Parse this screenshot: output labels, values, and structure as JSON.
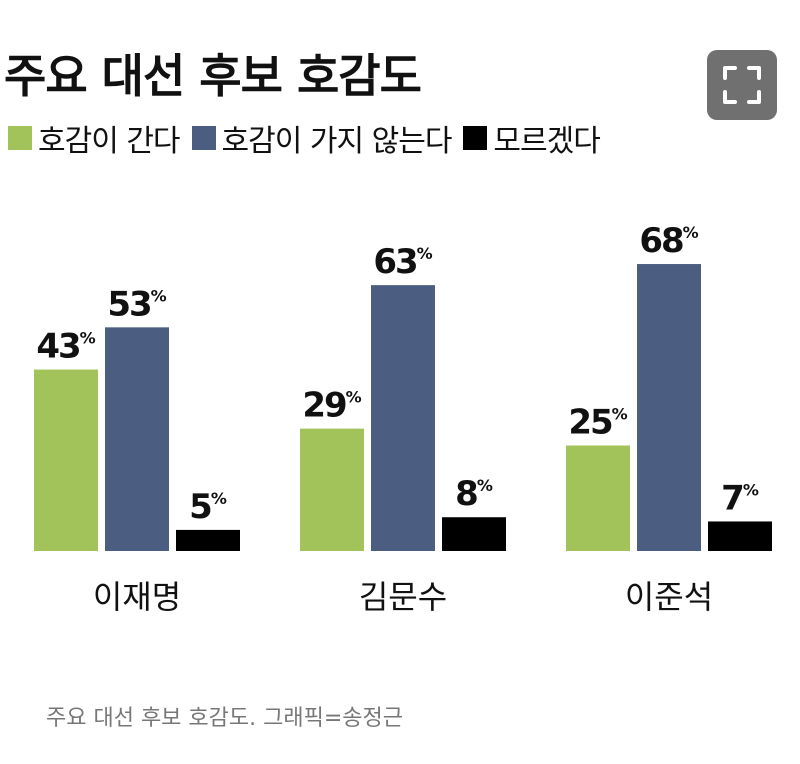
{
  "title": "주요 대선 후보 호감도",
  "expand_button": {
    "icon": "expand-icon"
  },
  "legend": [
    {
      "label": "호감이 간다",
      "color": "#a2c35a"
    },
    {
      "label": "호감이 가지 않는다",
      "color": "#4b5e82"
    },
    {
      "label": "모르겠다",
      "color": "#000000"
    }
  ],
  "caption": "주요 대선 후보 호감도. 그래픽=송정근",
  "chart_data": {
    "type": "bar",
    "title": "주요 대선 후보 호감도",
    "categories": [
      "이재명",
      "김문수",
      "이준석"
    ],
    "series": [
      {
        "name": "호감이 간다",
        "values": [
          43,
          29,
          25
        ],
        "color": "#a2c35a"
      },
      {
        "name": "호감이 가지 않는다",
        "values": [
          53,
          63,
          68
        ],
        "color": "#4b5e82"
      },
      {
        "name": "모르겠다",
        "values": [
          5,
          8,
          7
        ],
        "color": "#000000"
      }
    ],
    "unit": "%",
    "xlabel": "",
    "ylabel": "",
    "ylim": [
      0,
      80
    ],
    "grid": false,
    "legend_position": "top-left"
  }
}
